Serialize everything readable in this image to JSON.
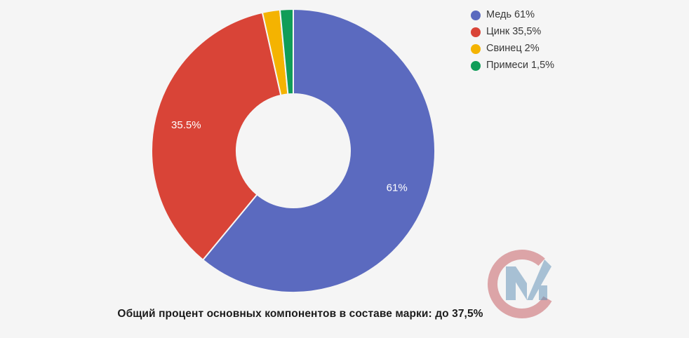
{
  "background_color": "#f5f5f5",
  "chart_data": {
    "type": "pie",
    "donut": true,
    "title": "",
    "legend_position": "right",
    "start_angle_deg": 0,
    "label_color": "#ffffff",
    "categories": [
      "Медь",
      "Цинк",
      "Свинец",
      "Примеси"
    ],
    "values": [
      61,
      35.5,
      2,
      1.5
    ],
    "slices": [
      {
        "name": "Медь",
        "value": 61,
        "color": "#5b6abf",
        "slice_label": "61%",
        "legend_label": "Медь 61%"
      },
      {
        "name": "Цинк",
        "value": 35.5,
        "color": "#d94437",
        "slice_label": "35.5%",
        "legend_label": "Цинк 35,5%"
      },
      {
        "name": "Свинец",
        "value": 2,
        "color": "#f4b301",
        "slice_label": "",
        "legend_label": "Свинец 2%"
      },
      {
        "name": "Примеси",
        "value": 1.5,
        "color": "#109d58",
        "slice_label": "",
        "legend_label": "Примеси 1,5%"
      }
    ]
  },
  "caption": "Общий процент основных компонентов в составе марки: до 37,5%",
  "logo": {
    "letters": "СМ",
    "c_color": "#c4545a",
    "m_color": "#5b8db4"
  }
}
